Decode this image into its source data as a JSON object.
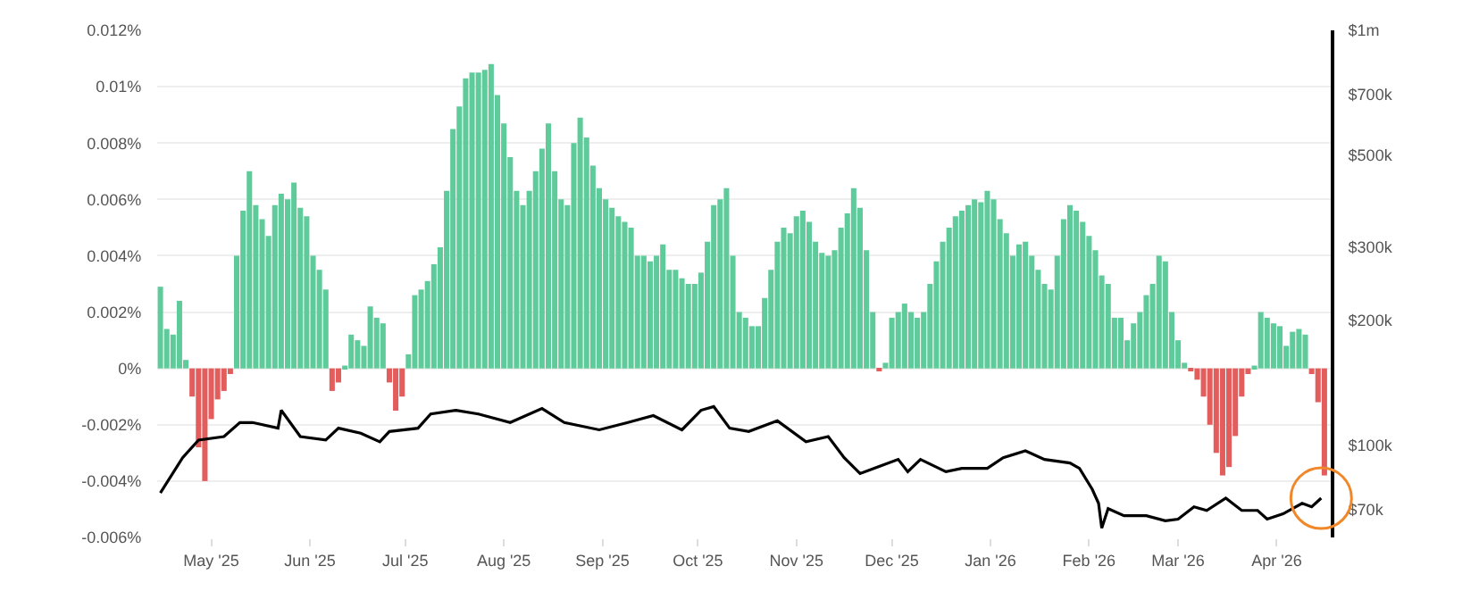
{
  "chart_data": {
    "type": "bar",
    "xlim": [
      "2025-04-14",
      "2026-04-18"
    ],
    "xticks": [
      {
        "value": "2025-05-01",
        "label": "May '25"
      },
      {
        "value": "2025-06-01",
        "label": "Jun '25"
      },
      {
        "value": "2025-07-01",
        "label": "Jul '25"
      },
      {
        "value": "2025-08-01",
        "label": "Aug '25"
      },
      {
        "value": "2025-09-01",
        "label": "Sep '25"
      },
      {
        "value": "2025-10-01",
        "label": "Oct '25"
      },
      {
        "value": "2025-11-01",
        "label": "Nov '25"
      },
      {
        "value": "2025-12-01",
        "label": "Dec '25"
      },
      {
        "value": "2026-01-01",
        "label": "Jan '26"
      },
      {
        "value": "2026-02-01",
        "label": "Feb '26"
      },
      {
        "value": "2026-03-01",
        "label": "Mar '26"
      },
      {
        "value": "2026-04-01",
        "label": "Apr '26"
      }
    ],
    "ylim": [
      -0.006,
      0.012
    ],
    "yticks": [
      {
        "value": -0.006,
        "label": "-0.006%"
      },
      {
        "value": -0.004,
        "label": "-0.004%"
      },
      {
        "value": -0.002,
        "label": "-0.002%"
      },
      {
        "value": 0,
        "label": "0%"
      },
      {
        "value": 0.002,
        "label": "0.002%"
      },
      {
        "value": 0.004,
        "label": "0.004%"
      },
      {
        "value": 0.006,
        "label": "0.006%"
      },
      {
        "value": 0.008,
        "label": "0.008%"
      },
      {
        "value": 0.01,
        "label": "0.01%"
      },
      {
        "value": 0.012,
        "label": "0.012%"
      }
    ],
    "y2lim": [
      60000,
      1000000
    ],
    "y2ticks": [
      {
        "value": 70000,
        "label": "$70k"
      },
      {
        "value": 100000,
        "label": "$100k"
      },
      {
        "value": 200000,
        "label": "$200k"
      },
      {
        "value": 300000,
        "label": "$300k"
      },
      {
        "value": 500000,
        "label": "$500k"
      },
      {
        "value": 700000,
        "label": "$700k"
      },
      {
        "value": 1000000,
        "label": "$1m"
      }
    ],
    "log": "y2",
    "grid": "y",
    "series": [
      {
        "x": [
          "2025-04-15",
          "2025-04-17",
          "2025-04-19",
          "2025-04-21",
          "2025-04-23",
          "2025-04-25",
          "2025-04-27",
          "2025-04-29",
          "2025-05-01",
          "2025-05-03",
          "2025-05-05",
          "2025-05-07",
          "2025-05-09",
          "2025-05-11",
          "2025-05-13",
          "2025-05-15",
          "2025-05-17",
          "2025-05-19",
          "2025-05-21",
          "2025-05-23",
          "2025-05-25",
          "2025-05-27",
          "2025-05-29",
          "2025-05-31",
          "2025-06-02",
          "2025-06-04",
          "2025-06-06",
          "2025-06-08",
          "2025-06-10",
          "2025-06-12",
          "2025-06-14",
          "2025-06-16",
          "2025-06-18",
          "2025-06-20",
          "2025-06-22",
          "2025-06-24",
          "2025-06-26",
          "2025-06-28",
          "2025-06-30",
          "2025-07-02",
          "2025-07-04",
          "2025-07-06",
          "2025-07-08",
          "2025-07-10",
          "2025-07-12",
          "2025-07-14",
          "2025-07-16",
          "2025-07-18",
          "2025-07-20",
          "2025-07-22",
          "2025-07-24",
          "2025-07-26",
          "2025-07-28",
          "2025-07-30",
          "2025-08-01",
          "2025-08-03",
          "2025-08-05",
          "2025-08-07",
          "2025-08-09",
          "2025-08-11",
          "2025-08-13",
          "2025-08-15",
          "2025-08-17",
          "2025-08-19",
          "2025-08-21",
          "2025-08-23",
          "2025-08-25",
          "2025-08-27",
          "2025-08-29",
          "2025-08-31",
          "2025-09-02",
          "2025-09-04",
          "2025-09-06",
          "2025-09-08",
          "2025-09-10",
          "2025-09-12",
          "2025-09-14",
          "2025-09-16",
          "2025-09-18",
          "2025-09-20",
          "2025-09-22",
          "2025-09-24",
          "2025-09-26",
          "2025-09-28",
          "2025-09-30",
          "2025-10-02",
          "2025-10-04",
          "2025-10-06",
          "2025-10-08",
          "2025-10-10",
          "2025-10-12",
          "2025-10-14",
          "2025-10-16",
          "2025-10-18",
          "2025-10-20",
          "2025-10-22",
          "2025-10-24",
          "2025-10-26",
          "2025-10-28",
          "2025-10-30",
          "2025-11-01",
          "2025-11-03",
          "2025-11-05",
          "2025-11-07",
          "2025-11-09",
          "2025-11-11",
          "2025-11-13",
          "2025-11-15",
          "2025-11-17",
          "2025-11-19",
          "2025-11-21",
          "2025-11-23",
          "2025-11-25",
          "2025-11-27",
          "2025-11-29",
          "2025-12-01",
          "2025-12-03",
          "2025-12-05",
          "2025-12-07",
          "2025-12-09",
          "2025-12-11",
          "2025-12-13",
          "2025-12-15",
          "2025-12-17",
          "2025-12-19",
          "2025-12-21",
          "2025-12-23",
          "2025-12-25",
          "2025-12-27",
          "2025-12-29",
          "2025-12-31",
          "2026-01-02",
          "2026-01-04",
          "2026-01-06",
          "2026-01-08",
          "2026-01-10",
          "2026-01-12",
          "2026-01-14",
          "2026-01-16",
          "2026-01-18",
          "2026-01-20",
          "2026-01-22",
          "2026-01-24",
          "2026-01-26",
          "2026-01-28",
          "2026-01-30",
          "2026-02-01",
          "2026-02-03",
          "2026-02-05",
          "2026-02-07",
          "2026-02-09",
          "2026-02-11",
          "2026-02-13",
          "2026-02-15",
          "2026-02-17",
          "2026-02-19",
          "2026-02-21",
          "2026-02-23",
          "2026-02-25",
          "2026-02-27",
          "2026-03-01",
          "2026-03-03",
          "2026-03-05",
          "2026-03-07",
          "2026-03-09",
          "2026-03-11",
          "2026-03-13",
          "2026-03-15",
          "2026-03-17",
          "2026-03-19",
          "2026-03-21",
          "2026-03-23",
          "2026-03-25",
          "2026-03-27",
          "2026-03-29",
          "2026-03-31",
          "2026-04-02",
          "2026-04-04",
          "2026-04-06",
          "2026-04-08",
          "2026-04-10",
          "2026-04-12",
          "2026-04-14",
          "2026-04-16"
        ],
        "values": [
          0.0029,
          0.0014,
          0.0012,
          0.0024,
          0.0003,
          -0.001,
          -0.0028,
          -0.004,
          -0.0018,
          -0.0011,
          -0.0008,
          -0.0002,
          0.004,
          0.0056,
          0.007,
          0.0058,
          0.0053,
          0.0047,
          0.0058,
          0.0062,
          0.006,
          0.0066,
          0.0057,
          0.0054,
          0.004,
          0.0035,
          0.0028,
          -0.0008,
          -0.0005,
          0.0001,
          0.0012,
          0.001,
          0.0008,
          0.0022,
          0.0018,
          0.0016,
          -0.0005,
          -0.0015,
          -0.001,
          0.0005,
          0.0026,
          0.0028,
          0.0031,
          0.0037,
          0.0043,
          0.0063,
          0.0085,
          0.0093,
          0.0103,
          0.0105,
          0.0105,
          0.0106,
          0.0108,
          0.0097,
          0.0087,
          0.0075,
          0.0063,
          0.0058,
          0.0063,
          0.007,
          0.0078,
          0.0087,
          0.007,
          0.006,
          0.0058,
          0.008,
          0.0089,
          0.0082,
          0.0072,
          0.0064,
          0.006,
          0.0057,
          0.0054,
          0.0052,
          0.005,
          0.004,
          0.004,
          0.0038,
          0.004,
          0.0044,
          0.0035,
          0.0035,
          0.0032,
          0.003,
          0.003,
          0.0034,
          0.0045,
          0.0058,
          0.006,
          0.0064,
          0.004,
          0.002,
          0.0018,
          0.0015,
          0.0015,
          0.0025,
          0.0035,
          0.0045,
          0.005,
          0.0048,
          0.0054,
          0.0056,
          0.0052,
          0.0045,
          0.0041,
          0.004,
          0.0042,
          0.005,
          0.0055,
          0.0064,
          0.0057,
          0.0042,
          0.002,
          -0.0001,
          0.0002,
          0.0018,
          0.002,
          0.0023,
          0.002,
          0.0018,
          0.002,
          0.003,
          0.0038,
          0.0045,
          0.005,
          0.0054,
          0.0056,
          0.0058,
          0.006,
          0.0059,
          0.0063,
          0.006,
          0.0053,
          0.0048,
          0.004,
          0.0044,
          0.0045,
          0.004,
          0.0035,
          0.003,
          0.0028,
          0.004,
          0.0053,
          0.0058,
          0.0056,
          0.0052,
          0.0047,
          0.0042,
          0.0033,
          0.003,
          0.0018,
          0.0018,
          0.001,
          0.0016,
          0.002,
          0.0026,
          0.003,
          0.004,
          0.0038,
          0.002,
          0.001,
          0.0002,
          -0.0001,
          -0.0004,
          -0.001,
          -0.002,
          -0.003,
          -0.0038,
          -0.0035,
          -0.0024,
          -0.001,
          -0.0002,
          0.0001,
          0.002,
          0.0018,
          0.0016,
          0.0015,
          0.0008,
          0.0013,
          0.0014,
          0.0012,
          -0.0002,
          -0.0012,
          -0.0038
        ],
        "colors": [
          "#5fcb9b",
          "#5fcb9b",
          "#5fcb9b",
          "#5fcb9b",
          "#5fcb9b",
          "#e35d5d",
          "#e35d5d",
          "#e35d5d",
          "#e35d5d",
          "#e35d5d",
          "#e35d5d",
          "#e35d5d",
          "#5fcb9b",
          "#5fcb9b",
          "#5fcb9b",
          "#5fcb9b",
          "#5fcb9b",
          "#5fcb9b",
          "#5fcb9b",
          "#5fcb9b",
          "#5fcb9b",
          "#5fcb9b",
          "#5fcb9b",
          "#5fcb9b",
          "#5fcb9b",
          "#5fcb9b",
          "#5fcb9b",
          "#e35d5d",
          "#e35d5d",
          "#5fcb9b",
          "#5fcb9b",
          "#5fcb9b",
          "#5fcb9b",
          "#5fcb9b",
          "#5fcb9b",
          "#5fcb9b",
          "#e35d5d",
          "#e35d5d",
          "#e35d5d",
          "#5fcb9b",
          "#5fcb9b",
          "#5fcb9b",
          "#5fcb9b",
          "#5fcb9b",
          "#5fcb9b",
          "#5fcb9b",
          "#5fcb9b",
          "#5fcb9b",
          "#5fcb9b",
          "#5fcb9b",
          "#5fcb9b",
          "#5fcb9b",
          "#5fcb9b",
          "#5fcb9b",
          "#5fcb9b",
          "#5fcb9b",
          "#5fcb9b",
          "#5fcb9b",
          "#5fcb9b",
          "#5fcb9b",
          "#5fcb9b",
          "#5fcb9b",
          "#5fcb9b",
          "#5fcb9b",
          "#5fcb9b",
          "#5fcb9b",
          "#5fcb9b",
          "#5fcb9b",
          "#5fcb9b",
          "#5fcb9b",
          "#5fcb9b",
          "#5fcb9b",
          "#5fcb9b",
          "#5fcb9b",
          "#5fcb9b",
          "#5fcb9b",
          "#5fcb9b",
          "#5fcb9b",
          "#5fcb9b",
          "#5fcb9b",
          "#5fcb9b",
          "#5fcb9b",
          "#5fcb9b",
          "#5fcb9b",
          "#5fcb9b",
          "#5fcb9b",
          "#5fcb9b",
          "#5fcb9b",
          "#5fcb9b",
          "#5fcb9b",
          "#5fcb9b",
          "#5fcb9b",
          "#5fcb9b",
          "#5fcb9b",
          "#5fcb9b",
          "#5fcb9b",
          "#5fcb9b",
          "#5fcb9b",
          "#5fcb9b",
          "#5fcb9b",
          "#5fcb9b",
          "#5fcb9b",
          "#5fcb9b",
          "#5fcb9b",
          "#5fcb9b",
          "#5fcb9b",
          "#5fcb9b",
          "#5fcb9b",
          "#5fcb9b",
          "#5fcb9b",
          "#5fcb9b",
          "#5fcb9b",
          "#5fcb9b",
          "#e35d5d",
          "#5fcb9b",
          "#5fcb9b",
          "#5fcb9b",
          "#5fcb9b",
          "#5fcb9b",
          "#5fcb9b",
          "#5fcb9b",
          "#5fcb9b",
          "#5fcb9b",
          "#5fcb9b",
          "#5fcb9b",
          "#5fcb9b",
          "#5fcb9b",
          "#5fcb9b",
          "#5fcb9b",
          "#5fcb9b",
          "#5fcb9b",
          "#5fcb9b",
          "#5fcb9b",
          "#5fcb9b",
          "#5fcb9b",
          "#5fcb9b",
          "#5fcb9b",
          "#5fcb9b",
          "#5fcb9b",
          "#5fcb9b",
          "#5fcb9b",
          "#5fcb9b",
          "#5fcb9b",
          "#5fcb9b",
          "#5fcb9b",
          "#5fcb9b",
          "#5fcb9b",
          "#5fcb9b",
          "#5fcb9b",
          "#5fcb9b",
          "#5fcb9b",
          "#5fcb9b",
          "#5fcb9b",
          "#5fcb9b",
          "#5fcb9b",
          "#5fcb9b",
          "#5fcb9b",
          "#5fcb9b",
          "#5fcb9b",
          "#5fcb9b",
          "#5fcb9b",
          "#5fcb9b",
          "#e35d5d",
          "#e35d5d",
          "#e35d5d",
          "#e35d5d",
          "#e35d5d",
          "#e35d5d",
          "#e35d5d",
          "#e35d5d",
          "#e35d5d",
          "#e35d5d",
          "#5fcb9b",
          "#5fcb9b",
          "#5fcb9b",
          "#5fcb9b",
          "#5fcb9b",
          "#5fcb9b",
          "#5fcb9b",
          "#5fcb9b",
          "#5fcb9b",
          "#e35d5d",
          "#e35d5d",
          "#e35d5d"
        ]
      },
      {
        "type": "line",
        "axis": "y2",
        "color": "#000000",
        "x": [
          "2025-04-15",
          "2025-04-22",
          "2025-04-27",
          "2025-05-05",
          "2025-05-10",
          "2025-05-14",
          "2025-05-22",
          "2025-05-23",
          "2025-05-29",
          "2025-06-06",
          "2025-06-10",
          "2025-06-17",
          "2025-06-23",
          "2025-06-26",
          "2025-07-05",
          "2025-07-09",
          "2025-07-17",
          "2025-07-24",
          "2025-08-03",
          "2025-08-13",
          "2025-08-20",
          "2025-08-31",
          "2025-09-09",
          "2025-09-17",
          "2025-09-26",
          "2025-10-02",
          "2025-10-06",
          "2025-10-11",
          "2025-10-17",
          "2025-10-26",
          "2025-11-04",
          "2025-11-11",
          "2025-11-16",
          "2025-11-21",
          "2025-11-27",
          "2025-12-03",
          "2025-12-06",
          "2025-12-10",
          "2025-12-18",
          "2025-12-23",
          "2025-12-31",
          "2026-01-05",
          "2026-01-12",
          "2026-01-18",
          "2026-01-26",
          "2026-01-29",
          "2026-02-02",
          "2026-02-04",
          "2026-02-05",
          "2026-02-07",
          "2026-02-12",
          "2026-02-19",
          "2026-02-25",
          "2026-03-01",
          "2026-03-06",
          "2026-03-10",
          "2026-03-16",
          "2026-03-21",
          "2026-03-26",
          "2026-03-29",
          "2026-04-03",
          "2026-04-09",
          "2026-04-12",
          "2026-04-15"
        ],
        "values": [
          76800,
          93400,
          103000,
          105000,
          113500,
          113500,
          110000,
          121500,
          105000,
          103000,
          110000,
          107000,
          102000,
          108000,
          110000,
          119000,
          121500,
          119000,
          113500,
          122700,
          113500,
          109000,
          113500,
          118000,
          109000,
          121500,
          124000,
          110000,
          108000,
          114600,
          102000,
          105000,
          93400,
          85500,
          89000,
          92500,
          86400,
          92500,
          86400,
          88000,
          88000,
          93400,
          97000,
          92500,
          90700,
          88000,
          78400,
          72500,
          63200,
          70400,
          67700,
          67700,
          65800,
          66400,
          71100,
          69700,
          74600,
          69700,
          69700,
          66400,
          68400,
          72500,
          71100,
          74600
        ]
      }
    ]
  }
}
